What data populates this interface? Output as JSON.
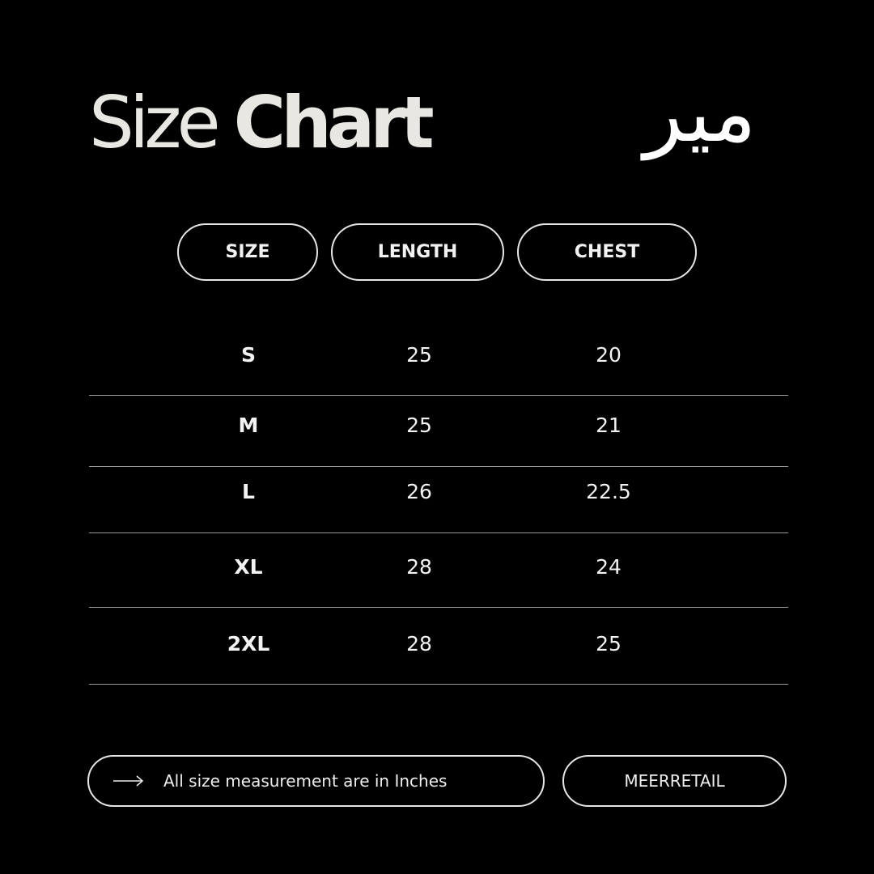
{
  "title": {
    "word1": "Size",
    "word2": "Chart"
  },
  "logo": {
    "text": "میر"
  },
  "headers": [
    "SIZE",
    "LENGTH",
    "CHEST"
  ],
  "rows": [
    {
      "size": "S",
      "length": "25",
      "chest": "20"
    },
    {
      "size": "M",
      "length": "25",
      "chest": "21"
    },
    {
      "size": "L",
      "length": "26",
      "chest": "22.5"
    },
    {
      "size": "XL",
      "length": "28",
      "chest": "24"
    },
    {
      "size": "2XL",
      "length": "28",
      "chest": "25"
    }
  ],
  "footer": {
    "note": "All size measurement are in Inches",
    "icon": "arrow-right-icon",
    "brand": "MEERRETAIL"
  },
  "colors": {
    "background": "#000000",
    "title": "#e9e7e1",
    "lines": "#9a9a9a"
  }
}
